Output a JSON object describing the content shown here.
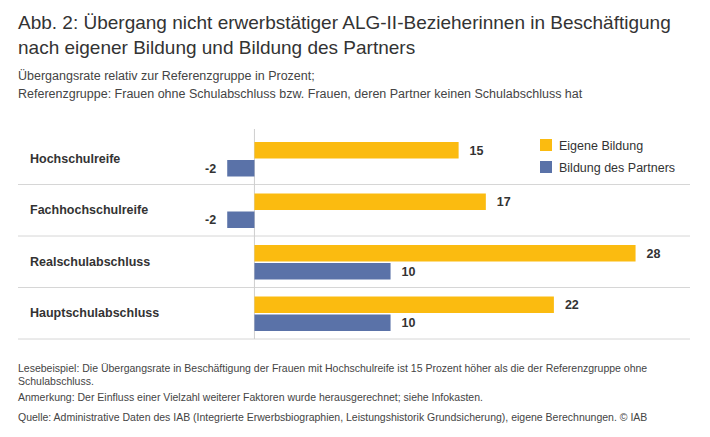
{
  "chart_data": {
    "type": "bar",
    "orientation": "horizontal",
    "title": "Abb. 2: Übergang nicht erwerbstätiger ALG-II-Bezieherinnen in Beschäftigung nach eigener Bildung und Bildung des Partners",
    "subtitle": [
      "Übergangsrate relativ zur Referenzgruppe in Prozent;",
      "Referenzgruppe: Frauen ohne Schulabschluss bzw. Frauen, deren Partner keinen Schulabschluss hat"
    ],
    "categories": [
      "Hochschulreife",
      "Fachhochschulreife",
      "Realschulabschluss",
      "Hauptschulabschluss"
    ],
    "series": [
      {
        "name": "Eigene Bildung",
        "color": "#fbbb10",
        "values": [
          15,
          17,
          28,
          22
        ]
      },
      {
        "name": "Bildung des Partners",
        "color": "#5a72a8",
        "values": [
          -2,
          -2,
          10,
          10
        ]
      }
    ],
    "xlim": [
      -4,
      32
    ],
    "xticks": [
      0
    ],
    "tick_labels": false,
    "data_labels": true,
    "legend": "top-right",
    "grid": false,
    "notes": [
      "Lesebeispiel: Die Übergangsrate in Beschäftigung der Frauen mit Hochschulreife ist 15 Prozent höher als die der Referenzgruppe ohne Schulabschluss.",
      "Anmerkung: Der Einfluss einer Vielzahl weiterer Faktoren wurde herausgerechnet; siehe Infokasten.",
      "Quelle: Administrative Daten des IAB (Integrierte Erwerbsbiographien, Leistungshistorik Grundsicherung), eigene Berechnungen. © IAB"
    ]
  }
}
